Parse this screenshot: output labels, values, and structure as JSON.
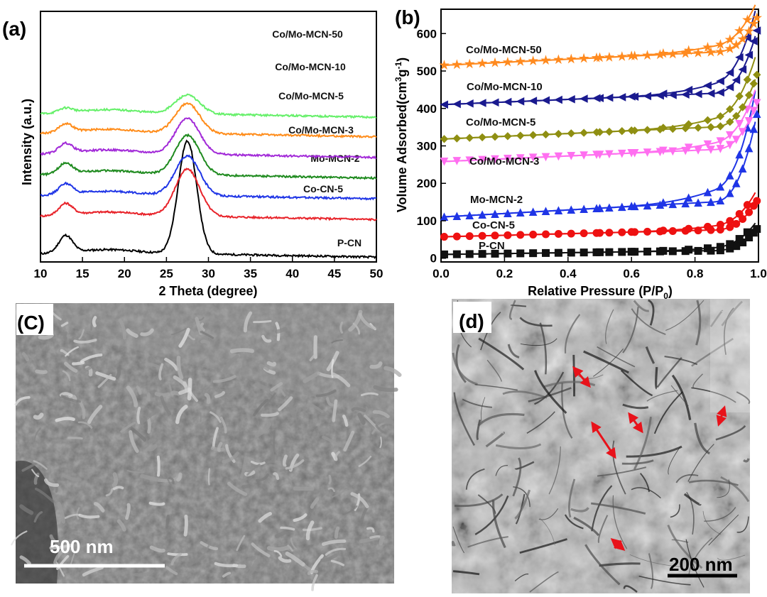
{
  "panels": {
    "a": "(a)",
    "b": "(b)",
    "c": "(C)",
    "d": "(d)"
  },
  "chart_data": [
    {
      "type": "line",
      "panel": "(a)",
      "xlabel": "2 Theta (degree)",
      "ylabel": "Intensity (a.u.)",
      "xlim": [
        10,
        50
      ],
      "xticks": [
        10,
        15,
        20,
        25,
        30,
        35,
        40,
        45,
        50
      ],
      "y_scale": "arbitrary units, stacked offsets",
      "peak_position": 27.5,
      "minor_peak_position": 13.0,
      "series": [
        {
          "name": "P-CN",
          "color": "#000000",
          "baseline": 0.0,
          "peak_height": 3.0,
          "minor_peak_height": 0.45
        },
        {
          "name": "Co-CN-5",
          "color": "#e8232a",
          "baseline": 1.0,
          "peak_height": 1.25,
          "minor_peak_height": 0.3
        },
        {
          "name": "Mo-MCN-2",
          "color": "#1f35e6",
          "baseline": 1.55,
          "peak_height": 1.05,
          "minor_peak_height": 0.28
        },
        {
          "name": "Co/Mo-MCN-3",
          "color": "#1e8a1e",
          "baseline": 2.1,
          "peak_height": 1.05,
          "minor_peak_height": 0.28
        },
        {
          "name": "Co/Mo-MCN-5",
          "color": "#a22ad8",
          "baseline": 2.65,
          "peak_height": 0.95,
          "minor_peak_height": 0.25
        },
        {
          "name": "Co/Mo-MCN-10",
          "color": "#ff8c1a",
          "baseline": 3.2,
          "peak_height": 0.8,
          "minor_peak_height": 0.22
        },
        {
          "name": "Co/Mo-MCN-50",
          "color": "#66f06a",
          "baseline": 3.72,
          "peak_height": 0.5,
          "minor_peak_height": 0.12
        }
      ]
    },
    {
      "type": "line",
      "panel": "(b)",
      "xlabel": "Relative Pressure (P/P",
      "xlabel_sub": "0",
      "xlabel_tail": ")",
      "ylabel": "Volume Adsorbed(cm",
      "ylabel_sup": "3",
      "ylabel_mid": "g",
      "ylabel_sup2": "-1",
      "ylabel_tail": ")",
      "xlim": [
        0.0,
        1.0
      ],
      "ylim": [
        -10,
        665
      ],
      "xticks": [
        "0.0",
        "0.2",
        "0.4",
        "0.6",
        "0.8",
        "1.0"
      ],
      "yticks": [
        "0",
        "100",
        "200",
        "300",
        "400",
        "500",
        "600"
      ],
      "series": [
        {
          "name": "P-CN",
          "color": "#111111",
          "marker": "square",
          "start": 10,
          "plateau_end": 20,
          "hyst_y": 45,
          "end": 78
        },
        {
          "name": "Co-CN-5",
          "color": "#ee1111",
          "marker": "circle",
          "start": 57,
          "plateau_end": 75,
          "hyst_y": 110,
          "end": 153
        },
        {
          "name": "Mo-MCN-2",
          "color": "#1f35e6",
          "marker": "triangle-up",
          "start": 110,
          "plateau_end": 150,
          "hyst_y": 250,
          "end": 385
        },
        {
          "name": "Co/Mo-MCN-3",
          "color": "#ff6ff0",
          "marker": "triangle-down",
          "start": 258,
          "plateau_end": 290,
          "hyst_y": 345,
          "end": 415
        },
        {
          "name": "Co/Mo-MCN-5",
          "color": "#8f8f12",
          "marker": "diamond",
          "start": 318,
          "plateau_end": 350,
          "hyst_y": 420,
          "end": 490
        },
        {
          "name": "Co/Mo-MCN-10",
          "color": "#1a1a8f",
          "marker": "triangle-left",
          "start": 410,
          "plateau_end": 440,
          "hyst_y": 520,
          "end": 608
        },
        {
          "name": "Co/Mo-MCN-50",
          "color": "#ff8a1f",
          "marker": "star",
          "start": 515,
          "plateau_end": 550,
          "hyst_y": 600,
          "end": 642
        }
      ]
    }
  ],
  "images": {
    "sem": {
      "label": "(C)",
      "scale_bar": "500 nm"
    },
    "tem": {
      "label": "(d)",
      "scale_bar": "200 nm"
    }
  }
}
